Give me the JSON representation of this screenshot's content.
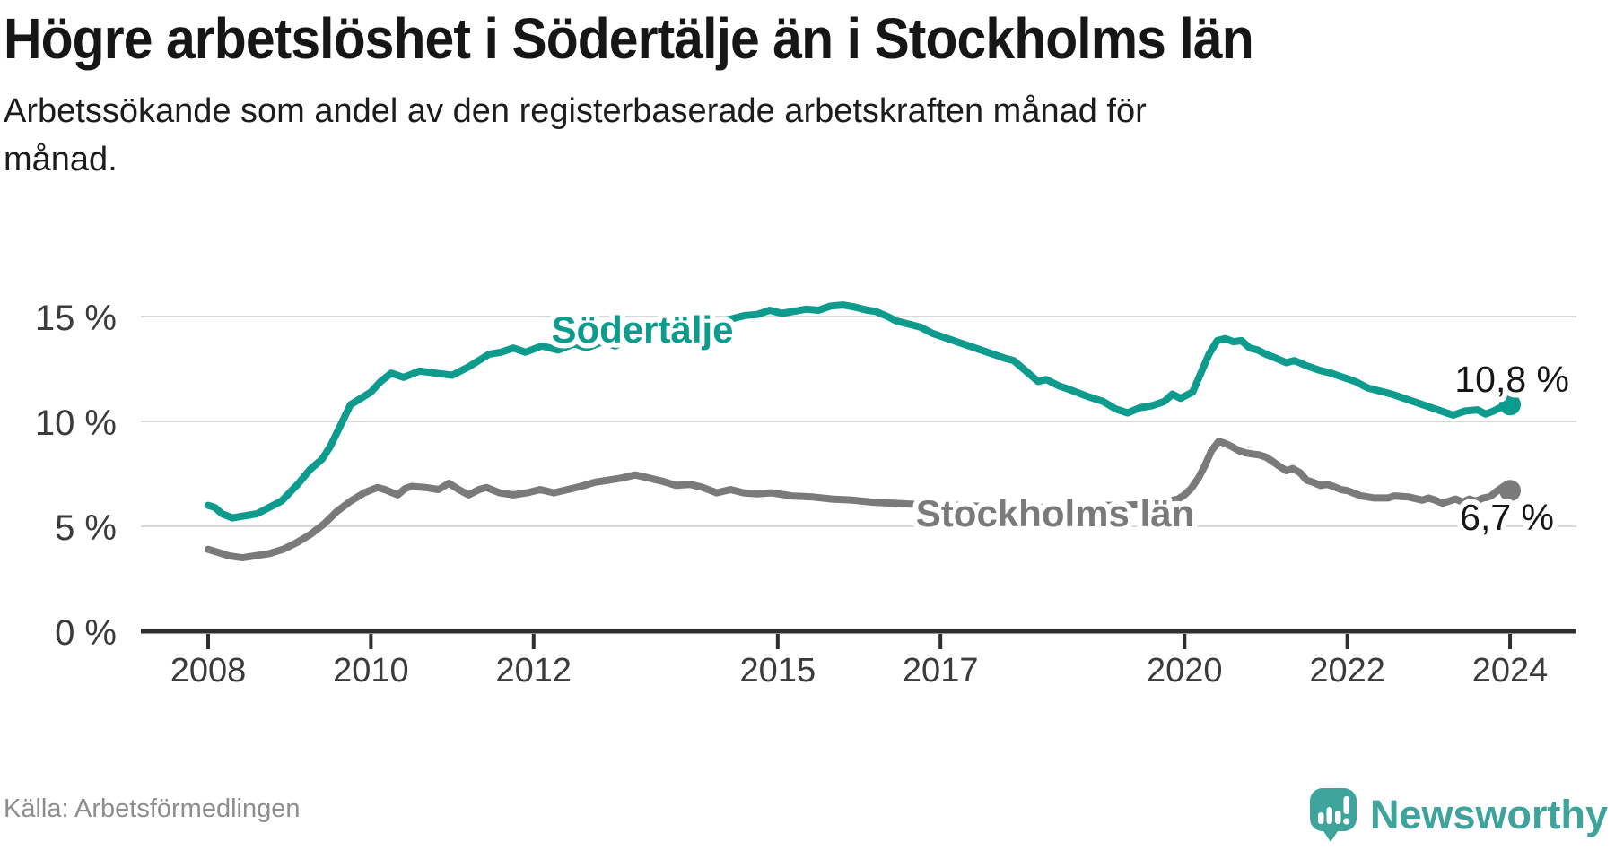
{
  "chart_data": {
    "type": "line",
    "title": "Högre arbetslöshet i Södertälje än i Stockholms län",
    "subtitle": "Arbetssökande som andel av den registerbaserade arbetskraften månad för\nmånad.",
    "grid": true,
    "legend_position": "inline-labels",
    "x_axis": {
      "tick_years": [
        2008,
        2010,
        2012,
        2015,
        2017,
        2020,
        2022,
        2024
      ],
      "range": [
        2008,
        2024.8
      ]
    },
    "y_axis": {
      "unit": "%",
      "range": [
        0,
        16
      ],
      "ticks": [
        {
          "value": 0,
          "label": "0 %"
        },
        {
          "value": 5,
          "label": "5 %"
        },
        {
          "value": 10,
          "label": "10 %"
        },
        {
          "value": 15,
          "label": "15 %"
        }
      ]
    },
    "series": [
      {
        "name": "Stockholms län",
        "color": "#7a7a7a",
        "end_label": "6,7 %",
        "points": [
          [
            2008.0,
            3.9
          ],
          [
            2008.17,
            3.7
          ],
          [
            2008.25,
            3.6
          ],
          [
            2008.42,
            3.5
          ],
          [
            2008.58,
            3.6
          ],
          [
            2008.75,
            3.7
          ],
          [
            2008.92,
            3.9
          ],
          [
            2009.08,
            4.2
          ],
          [
            2009.25,
            4.6
          ],
          [
            2009.42,
            5.1
          ],
          [
            2009.58,
            5.7
          ],
          [
            2009.75,
            6.2
          ],
          [
            2009.92,
            6.6
          ],
          [
            2010.08,
            6.85
          ],
          [
            2010.17,
            6.75
          ],
          [
            2010.33,
            6.5
          ],
          [
            2010.42,
            6.8
          ],
          [
            2010.5,
            6.9
          ],
          [
            2010.67,
            6.85
          ],
          [
            2010.83,
            6.75
          ],
          [
            2010.96,
            7.05
          ],
          [
            2011.08,
            6.75
          ],
          [
            2011.2,
            6.5
          ],
          [
            2011.33,
            6.75
          ],
          [
            2011.42,
            6.85
          ],
          [
            2011.58,
            6.6
          ],
          [
            2011.75,
            6.5
          ],
          [
            2011.92,
            6.6
          ],
          [
            2012.08,
            6.75
          ],
          [
            2012.25,
            6.6
          ],
          [
            2012.42,
            6.75
          ],
          [
            2012.58,
            6.9
          ],
          [
            2012.75,
            7.1
          ],
          [
            2012.92,
            7.2
          ],
          [
            2013.08,
            7.3
          ],
          [
            2013.25,
            7.45
          ],
          [
            2013.42,
            7.3
          ],
          [
            2013.58,
            7.15
          ],
          [
            2013.75,
            6.95
          ],
          [
            2013.92,
            7.0
          ],
          [
            2014.08,
            6.85
          ],
          [
            2014.25,
            6.6
          ],
          [
            2014.42,
            6.75
          ],
          [
            2014.58,
            6.6
          ],
          [
            2014.75,
            6.55
          ],
          [
            2014.92,
            6.6
          ],
          [
            2015.17,
            6.45
          ],
          [
            2015.42,
            6.4
          ],
          [
            2015.67,
            6.3
          ],
          [
            2015.92,
            6.25
          ],
          [
            2016.17,
            6.15
          ],
          [
            2016.42,
            6.1
          ],
          [
            2016.67,
            6.05
          ],
          [
            2016.92,
            6.0
          ],
          [
            2017.25,
            6.0
          ],
          [
            2017.5,
            5.95
          ],
          [
            2017.75,
            5.9
          ],
          [
            2018.0,
            5.95
          ],
          [
            2018.25,
            5.9
          ],
          [
            2018.5,
            5.9
          ],
          [
            2018.75,
            5.95
          ],
          [
            2019.0,
            6.0
          ],
          [
            2019.25,
            6.0
          ],
          [
            2019.5,
            6.05
          ],
          [
            2019.75,
            6.15
          ],
          [
            2019.92,
            6.3
          ],
          [
            2020.0,
            6.5
          ],
          [
            2020.08,
            6.8
          ],
          [
            2020.17,
            7.3
          ],
          [
            2020.25,
            7.9
          ],
          [
            2020.33,
            8.6
          ],
          [
            2020.42,
            9.05
          ],
          [
            2020.5,
            8.95
          ],
          [
            2020.58,
            8.8
          ],
          [
            2020.67,
            8.6
          ],
          [
            2020.75,
            8.5
          ],
          [
            2020.83,
            8.45
          ],
          [
            2020.92,
            8.4
          ],
          [
            2021.0,
            8.3
          ],
          [
            2021.08,
            8.1
          ],
          [
            2021.17,
            7.85
          ],
          [
            2021.25,
            7.65
          ],
          [
            2021.33,
            7.75
          ],
          [
            2021.42,
            7.55
          ],
          [
            2021.5,
            7.2
          ],
          [
            2021.58,
            7.1
          ],
          [
            2021.67,
            6.95
          ],
          [
            2021.75,
            7.0
          ],
          [
            2021.83,
            6.9
          ],
          [
            2021.92,
            6.75
          ],
          [
            2022.0,
            6.7
          ],
          [
            2022.17,
            6.45
          ],
          [
            2022.33,
            6.35
          ],
          [
            2022.5,
            6.35
          ],
          [
            2022.58,
            6.45
          ],
          [
            2022.75,
            6.4
          ],
          [
            2022.92,
            6.25
          ],
          [
            2023.0,
            6.35
          ],
          [
            2023.08,
            6.25
          ],
          [
            2023.17,
            6.1
          ],
          [
            2023.25,
            6.2
          ],
          [
            2023.33,
            6.3
          ],
          [
            2023.42,
            6.15
          ],
          [
            2023.5,
            6.3
          ],
          [
            2023.58,
            6.2
          ],
          [
            2023.67,
            6.35
          ],
          [
            2023.75,
            6.4
          ],
          [
            2023.83,
            6.65
          ],
          [
            2023.92,
            6.9
          ],
          [
            2024.0,
            6.7
          ]
        ]
      },
      {
        "name": "Södertälje",
        "color": "#0c9b8d",
        "end_label": "10,8 %",
        "points": [
          [
            2008.0,
            6.0
          ],
          [
            2008.08,
            5.9
          ],
          [
            2008.17,
            5.6
          ],
          [
            2008.3,
            5.4
          ],
          [
            2008.45,
            5.5
          ],
          [
            2008.6,
            5.6
          ],
          [
            2008.75,
            5.9
          ],
          [
            2008.9,
            6.2
          ],
          [
            2009.1,
            7.0
          ],
          [
            2009.25,
            7.7
          ],
          [
            2009.4,
            8.2
          ],
          [
            2009.5,
            8.8
          ],
          [
            2009.6,
            9.6
          ],
          [
            2009.75,
            10.8
          ],
          [
            2009.92,
            11.2
          ],
          [
            2010.0,
            11.4
          ],
          [
            2010.12,
            11.9
          ],
          [
            2010.25,
            12.3
          ],
          [
            2010.4,
            12.1
          ],
          [
            2010.6,
            12.4
          ],
          [
            2010.8,
            12.3
          ],
          [
            2011.0,
            12.2
          ],
          [
            2011.2,
            12.6
          ],
          [
            2011.45,
            13.2
          ],
          [
            2011.6,
            13.3
          ],
          [
            2011.75,
            13.5
          ],
          [
            2011.9,
            13.3
          ],
          [
            2012.1,
            13.6
          ],
          [
            2012.3,
            13.4
          ],
          [
            2012.5,
            13.7
          ],
          [
            2012.65,
            13.5
          ],
          [
            2012.85,
            13.8
          ],
          [
            2013.0,
            13.6
          ],
          [
            2013.2,
            13.9
          ],
          [
            2013.5,
            14.2
          ],
          [
            2013.8,
            14.4
          ],
          [
            2014.1,
            14.6
          ],
          [
            2014.45,
            14.9
          ],
          [
            2014.6,
            15.05
          ],
          [
            2014.75,
            15.1
          ],
          [
            2014.9,
            15.3
          ],
          [
            2015.05,
            15.15
          ],
          [
            2015.2,
            15.25
          ],
          [
            2015.35,
            15.35
          ],
          [
            2015.5,
            15.3
          ],
          [
            2015.65,
            15.5
          ],
          [
            2015.8,
            15.55
          ],
          [
            2015.95,
            15.45
          ],
          [
            2016.1,
            15.3
          ],
          [
            2016.2,
            15.25
          ],
          [
            2016.35,
            15.0
          ],
          [
            2016.45,
            14.8
          ],
          [
            2016.6,
            14.65
          ],
          [
            2016.75,
            14.5
          ],
          [
            2016.9,
            14.2
          ],
          [
            2017.05,
            14.0
          ],
          [
            2017.2,
            13.8
          ],
          [
            2017.35,
            13.6
          ],
          [
            2017.5,
            13.4
          ],
          [
            2017.65,
            13.2
          ],
          [
            2017.8,
            13.0
          ],
          [
            2017.9,
            12.9
          ],
          [
            2018.05,
            12.4
          ],
          [
            2018.2,
            11.9
          ],
          [
            2018.3,
            12.0
          ],
          [
            2018.45,
            11.7
          ],
          [
            2018.6,
            11.5
          ],
          [
            2018.8,
            11.2
          ],
          [
            2019.0,
            10.95
          ],
          [
            2019.15,
            10.6
          ],
          [
            2019.3,
            10.4
          ],
          [
            2019.45,
            10.65
          ],
          [
            2019.6,
            10.75
          ],
          [
            2019.75,
            10.95
          ],
          [
            2019.85,
            11.3
          ],
          [
            2019.95,
            11.1
          ],
          [
            2020.1,
            11.4
          ],
          [
            2020.2,
            12.3
          ],
          [
            2020.3,
            13.2
          ],
          [
            2020.4,
            13.85
          ],
          [
            2020.5,
            13.95
          ],
          [
            2020.6,
            13.8
          ],
          [
            2020.7,
            13.85
          ],
          [
            2020.8,
            13.5
          ],
          [
            2020.9,
            13.4
          ],
          [
            2021.0,
            13.2
          ],
          [
            2021.1,
            13.05
          ],
          [
            2021.25,
            12.8
          ],
          [
            2021.35,
            12.9
          ],
          [
            2021.5,
            12.65
          ],
          [
            2021.65,
            12.45
          ],
          [
            2021.8,
            12.3
          ],
          [
            2021.95,
            12.1
          ],
          [
            2022.1,
            11.9
          ],
          [
            2022.25,
            11.6
          ],
          [
            2022.4,
            11.45
          ],
          [
            2022.55,
            11.3
          ],
          [
            2022.7,
            11.1
          ],
          [
            2022.85,
            10.9
          ],
          [
            2023.0,
            10.7
          ],
          [
            2023.15,
            10.5
          ],
          [
            2023.3,
            10.3
          ],
          [
            2023.45,
            10.5
          ],
          [
            2023.6,
            10.55
          ],
          [
            2023.7,
            10.35
          ],
          [
            2023.8,
            10.5
          ],
          [
            2023.9,
            10.7
          ],
          [
            2024.0,
            10.8
          ]
        ]
      }
    ]
  },
  "footer": {
    "source": "Källa: Arbetsförmedlingen",
    "brand": "Newsworthy"
  },
  "colors": {
    "accent_teal": "#0c9b8d",
    "series_gray": "#7a7a7a",
    "grid": "#dadada",
    "axis": "#2f2f2f",
    "tick_label": "#3b3b3b",
    "value_label": "#161616",
    "logo_teal": "#3da39b"
  }
}
